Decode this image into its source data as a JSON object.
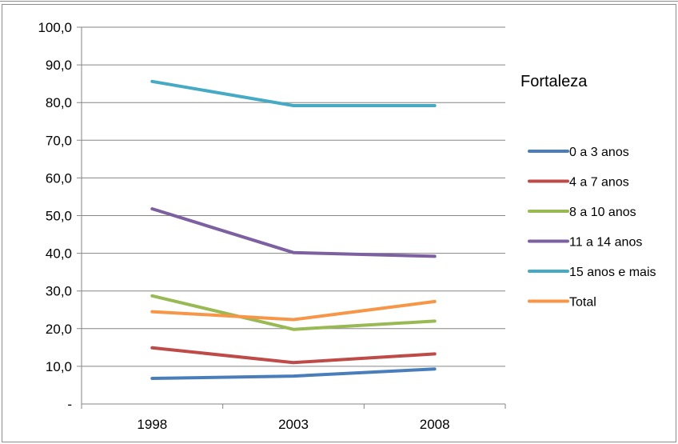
{
  "chart_data": {
    "type": "line",
    "title": "Fortaleza",
    "categories": [
      "1998",
      "2003",
      "2008"
    ],
    "y_ticks": [
      "-",
      "10,0",
      "20,0",
      "30,0",
      "40,0",
      "50,0",
      "60,0",
      "70,0",
      "80,0",
      "90,0",
      "100,0"
    ],
    "ylim": [
      0,
      100
    ],
    "grid": true,
    "legend_position": "right",
    "series": [
      {
        "name": "0 a 3 anos",
        "values": [
          6.8,
          7.4,
          9.3
        ],
        "color": "#4a7ebb"
      },
      {
        "name": "4 a 7 anos",
        "values": [
          14.9,
          11.0,
          13.3
        ],
        "color": "#be4b48"
      },
      {
        "name": "8 a 10 anos",
        "values": [
          28.7,
          19.8,
          22.0
        ],
        "color": "#98b954"
      },
      {
        "name": "11 a 14 anos",
        "values": [
          51.8,
          40.2,
          39.2
        ],
        "color": "#7d60a0"
      },
      {
        "name": "15 anos e mais",
        "values": [
          85.6,
          79.2,
          79.2
        ],
        "color": "#46aac5"
      },
      {
        "name": "Total",
        "values": [
          24.5,
          22.4,
          27.2
        ],
        "color": "#f79646"
      }
    ]
  }
}
